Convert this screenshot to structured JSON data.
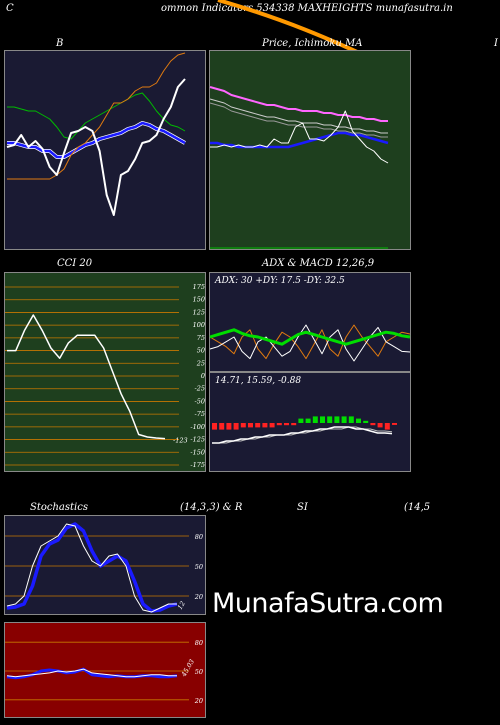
{
  "header": {
    "left_char": "C",
    "title": "ommon  Indicators 534338  MAXHEIGHTS munafasutra.in"
  },
  "labels": {
    "bb": "B",
    "price_ma": "Price,  Ichimoku  MA",
    "right_cut": "I",
    "cci": "CCI 20",
    "adx_macd": "ADX  & MACD 12,26,9",
    "stoch": "Stochastics",
    "stoch_params": "(14,3,3) & R",
    "si": "SI",
    "rsi_params": "(14,5"
  },
  "watermark": "MunafaSutra.com",
  "colors": {
    "panel_dark": "#1a1a33",
    "panel_green": "#1e3f1e",
    "panel_red": "#880000",
    "price_line": "#ffffff",
    "blue_band": "#1a1aff",
    "green_band": "#00bb00",
    "orange": "#e07a10",
    "headline_orange": "#ff9900"
  },
  "chart_data": [
    {
      "type": "line",
      "name": "bollinger",
      "series": [
        {
          "values": [
            52,
            53,
            58,
            52,
            55,
            51,
            42,
            38,
            49,
            59,
            60,
            62,
            60,
            50,
            28,
            18,
            38,
            40,
            46,
            54,
            55,
            58,
            66,
            72,
            82,
            86
          ]
        },
        {
          "values": [
            36,
            36,
            36,
            36,
            36,
            36,
            36,
            38,
            41,
            48,
            52,
            54,
            58,
            62,
            68,
            74,
            74,
            76,
            80,
            82,
            82,
            84,
            90,
            95,
            98,
            99
          ]
        },
        {
          "values": [
            54,
            54,
            53,
            52,
            52,
            50,
            50,
            47,
            47,
            49,
            51,
            53,
            54,
            56,
            57,
            58,
            59,
            61,
            62,
            64,
            63,
            61,
            60,
            58,
            56,
            54
          ]
        },
        {
          "values": [
            72,
            72,
            71,
            70,
            70,
            68,
            66,
            62,
            57,
            56,
            60,
            64,
            66,
            68,
            70,
            72,
            74,
            76,
            78,
            79,
            75,
            70,
            66,
            63,
            62,
            60
          ]
        }
      ]
    },
    {
      "type": "line",
      "name": "price-ichimoku-ma",
      "series": [
        {
          "values": [
            52,
            52,
            53,
            52,
            53,
            52,
            52,
            53,
            52,
            56,
            54,
            54,
            62,
            64,
            56,
            56,
            55,
            58,
            62,
            70,
            60,
            56,
            52,
            50,
            46,
            44
          ]
        },
        {
          "values": [
            82,
            81,
            80,
            78,
            77,
            76,
            75,
            74,
            73,
            73,
            72,
            71,
            71,
            70,
            70,
            70,
            69,
            69,
            68,
            68,
            67,
            67,
            66,
            66,
            65,
            65
          ]
        },
        {
          "values": [
            54,
            54,
            53,
            53,
            52,
            52,
            52,
            52,
            52,
            52,
            52,
            52,
            53,
            54,
            55,
            56,
            57,
            58,
            59,
            59,
            58,
            58,
            57,
            56,
            55,
            54
          ]
        }
      ]
    },
    {
      "type": "line",
      "name": "cci",
      "ylim": [
        -175,
        175
      ],
      "yticks": [
        175,
        150,
        125,
        100,
        75,
        50,
        25,
        0,
        -25,
        -50,
        -75,
        -100,
        -125,
        -150,
        -175
      ],
      "values": [
        50,
        50,
        90,
        120,
        90,
        55,
        35,
        65,
        80,
        80,
        80,
        55,
        10,
        -35,
        -70,
        -115,
        -120,
        -122,
        -123
      ],
      "last_label": "-123"
    },
    {
      "type": "line",
      "name": "adx",
      "header": "ADX: 30   +DY: 17.5 -DY: 32.5",
      "series": [
        {
          "values": [
            30,
            32,
            34,
            36,
            33,
            31,
            30,
            28,
            26,
            24,
            28,
            32,
            34,
            32,
            30,
            28,
            26,
            24,
            26,
            28,
            30,
            32,
            34,
            33,
            31,
            30
          ]
        },
        {
          "values": [
            20,
            22,
            26,
            30,
            18,
            12,
            26,
            30,
            22,
            14,
            18,
            30,
            40,
            28,
            16,
            30,
            36,
            20,
            10,
            20,
            30,
            38,
            26,
            22,
            18,
            17.5
          ]
        },
        {
          "values": [
            30,
            26,
            22,
            16,
            30,
            36,
            20,
            12,
            24,
            34,
            30,
            22,
            12,
            24,
            36,
            20,
            14,
            30,
            40,
            30,
            22,
            14,
            26,
            30,
            34,
            32.5
          ]
        }
      ]
    },
    {
      "type": "bar",
      "name": "macd",
      "header": "14.71,  15.59,  -0.88",
      "line": [
        10,
        10,
        11,
        11,
        12,
        12,
        13,
        13,
        14,
        14,
        14,
        15,
        15,
        16,
        16,
        17,
        17,
        18,
        18,
        18,
        17,
        17,
        16,
        15,
        15,
        14.71
      ],
      "signal": [
        10,
        10,
        10,
        11,
        11,
        12,
        12,
        13,
        13,
        14,
        14,
        14,
        15,
        15,
        16,
        16,
        17,
        17,
        17,
        18,
        18,
        17,
        17,
        16,
        16,
        15.59
      ],
      "histogram": [
        -3,
        -3,
        -3,
        -3,
        -2,
        -2,
        -2,
        -2,
        -2,
        -1,
        -1,
        -1,
        2,
        2,
        3,
        3,
        3,
        3,
        3,
        3,
        2,
        1,
        -1,
        -2,
        -3,
        -0.88
      ]
    },
    {
      "type": "line",
      "name": "stochastics",
      "yticks": [
        80,
        50,
        20
      ],
      "series": [
        {
          "values": [
            10,
            12,
            20,
            50,
            70,
            75,
            80,
            92,
            90,
            70,
            55,
            50,
            60,
            62,
            50,
            20,
            6,
            4,
            8,
            12,
            12
          ]
        },
        {
          "values": [
            8,
            9,
            12,
            30,
            60,
            72,
            76,
            88,
            92,
            85,
            65,
            50,
            55,
            60,
            55,
            35,
            12,
            5,
            6,
            10,
            12
          ]
        }
      ],
      "last_label": "12"
    },
    {
      "type": "line",
      "name": "rsi",
      "yticks": [
        80,
        50,
        20
      ],
      "series": [
        {
          "values": [
            45,
            44,
            45,
            46,
            47,
            48,
            50,
            49,
            50,
            52,
            48,
            47,
            46,
            45,
            44,
            44,
            45,
            46,
            46,
            45,
            45
          ]
        },
        {
          "values": [
            44,
            43,
            44,
            46,
            50,
            51,
            50,
            48,
            49,
            52,
            46,
            45,
            44,
            45,
            44,
            44,
            45,
            45,
            44,
            44,
            45
          ]
        }
      ],
      "last_label": "45.03"
    }
  ]
}
